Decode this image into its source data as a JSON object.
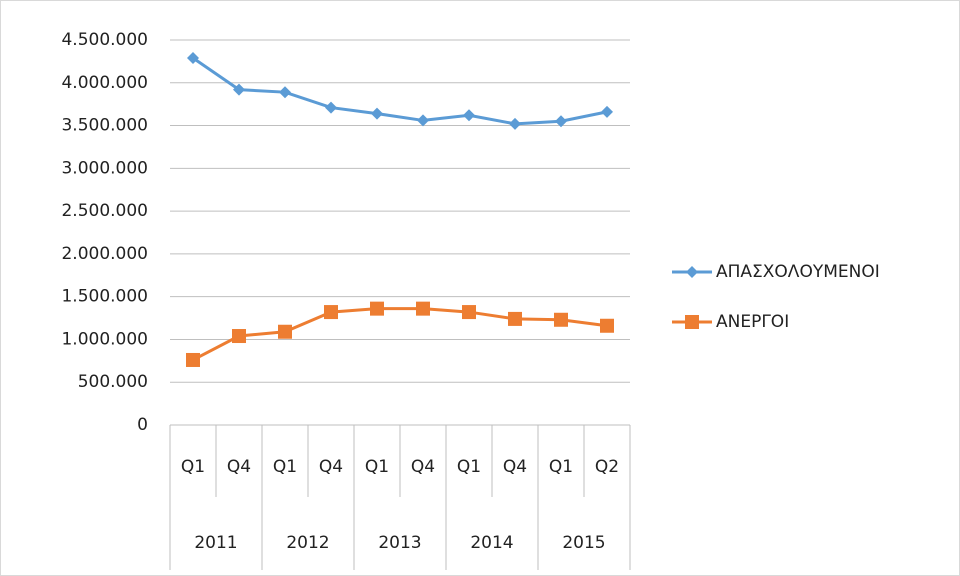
{
  "chart_data": {
    "type": "line",
    "categories": [
      "Q1",
      "Q4",
      "Q1",
      "Q4",
      "Q1",
      "Q4",
      "Q1",
      "Q4",
      "Q1",
      "Q2"
    ],
    "category_groups": [
      "2011",
      "2012",
      "2013",
      "2014",
      "2015"
    ],
    "series": [
      {
        "name": "ΑΠΑΣΧΟΛΟΥΜΕΝΟΙ",
        "color": "#5b9bd5",
        "marker": "diamond",
        "values": [
          4290000,
          3920000,
          3890000,
          3710000,
          3640000,
          3560000,
          3620000,
          3520000,
          3550000,
          3660000
        ]
      },
      {
        "name": "ΑΝΕΡΓΟΙ",
        "color": "#ed7d31",
        "marker": "square",
        "values": [
          760000,
          1040000,
          1090000,
          1320000,
          1360000,
          1360000,
          1320000,
          1240000,
          1230000,
          1160000
        ]
      }
    ],
    "ylim": [
      0,
      4500000
    ],
    "yticks": [
      0,
      {
        "value": 500000,
        "label": "500.000"
      },
      {
        "value": 1000000,
        "label": "1.000.000"
      },
      {
        "value": 1500000,
        "label": "1.500.000"
      },
      {
        "value": 2000000,
        "label": "2.000.000"
      },
      {
        "value": 2500000,
        "label": "2.500.000"
      },
      {
        "value": 3000000,
        "label": "3.000.000"
      },
      {
        "value": 3500000,
        "label": "3.500.000"
      },
      {
        "value": 4000000,
        "label": "4.000.000"
      },
      {
        "value": 4500000,
        "label": "4.500.000"
      }
    ],
    "grid": true,
    "legend": "right"
  }
}
